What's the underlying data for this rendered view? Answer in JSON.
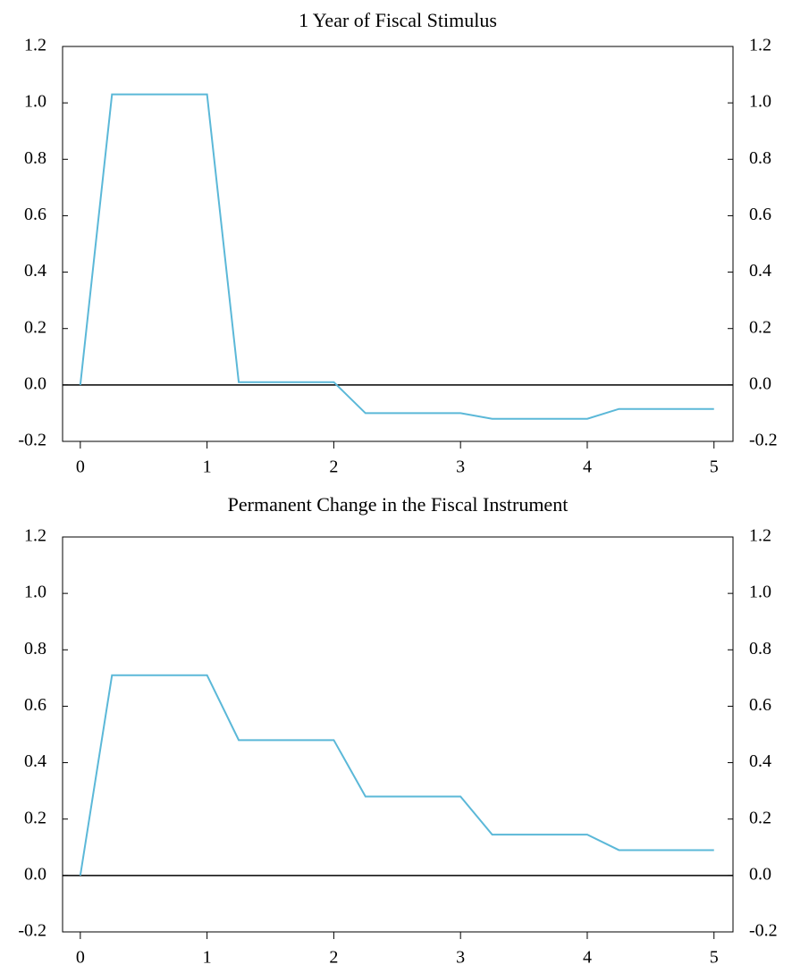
{
  "chart_data": [
    {
      "type": "line",
      "title": "1 Year of Fiscal Stimulus",
      "x": [
        0,
        0.25,
        1,
        1.25,
        2,
        2.25,
        3,
        3.25,
        4,
        4.25,
        5
      ],
      "values": [
        0,
        1.03,
        1.03,
        0.01,
        0.01,
        -0.1,
        -0.1,
        -0.12,
        -0.12,
        -0.085,
        -0.085
      ],
      "color": "#5bb8d8",
      "xlim": [
        -0.14,
        5.15
      ],
      "xticks": [
        0,
        1,
        2,
        3,
        4,
        5
      ],
      "ylim": [
        -0.2,
        1.2
      ],
      "yticks": [
        -0.2,
        {
          "value": 0,
          "label": "0.0"
        },
        0.2,
        0.4,
        0.6,
        0.8,
        {
          "value": 1,
          "label": "1.0"
        },
        1.2
      ],
      "y2lim": [
        -0.2,
        1.2
      ],
      "y2ticks": [
        -0.2,
        {
          "value": 0,
          "label": "0.0"
        },
        0.2,
        0.4,
        0.6,
        0.8,
        {
          "value": 1,
          "label": "1.0"
        },
        1.2
      ]
    },
    {
      "type": "line",
      "title": "Permanent Change in the Fiscal Instrument",
      "x": [
        0,
        0.25,
        1,
        1.25,
        2,
        2.25,
        3,
        3.25,
        4,
        4.25,
        5
      ],
      "values": [
        0,
        0.71,
        0.71,
        0.48,
        0.48,
        0.28,
        0.28,
        0.145,
        0.145,
        0.09,
        0.09
      ],
      "color": "#5bb8d8",
      "xlim": [
        -0.14,
        5.15
      ],
      "xticks": [
        0,
        1,
        2,
        3,
        4,
        5
      ],
      "ylim": [
        -0.2,
        1.2
      ],
      "yticks": [
        -0.2,
        {
          "value": 0,
          "label": "0.0"
        },
        0.2,
        0.4,
        0.6,
        0.8,
        {
          "value": 1,
          "label": "1.0"
        },
        1.2
      ],
      "y2lim": [
        -0.2,
        1.2
      ],
      "y2ticks": [
        -0.2,
        {
          "value": 0,
          "label": "0.0"
        },
        0.2,
        0.4,
        0.6,
        0.8,
        {
          "value": 1,
          "label": "1.0"
        },
        1.2
      ]
    }
  ]
}
